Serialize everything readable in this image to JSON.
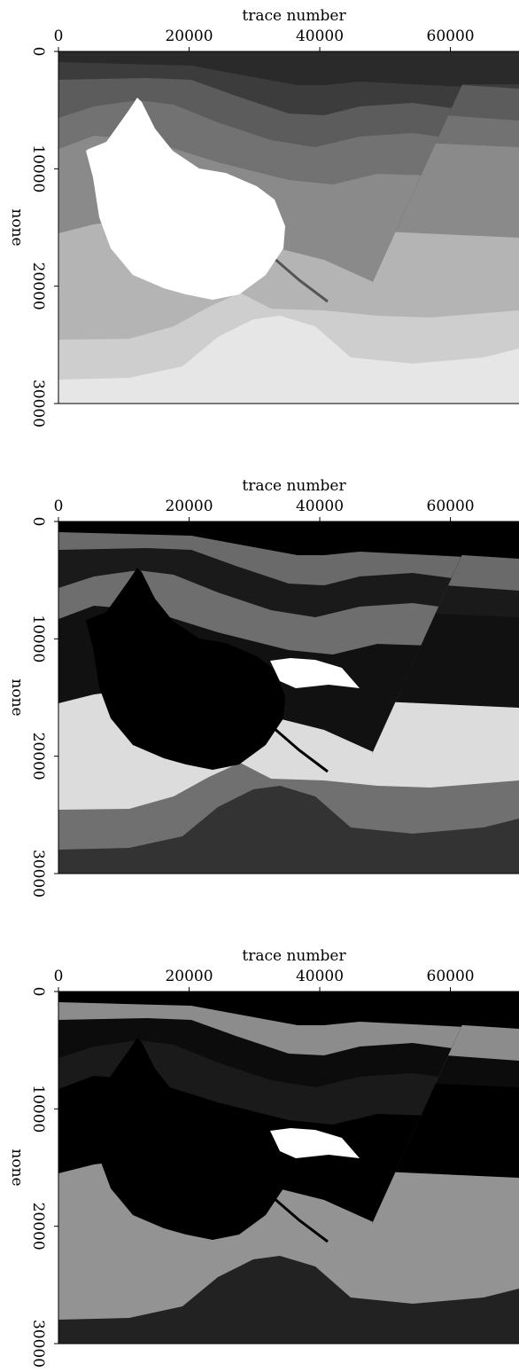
{
  "chart_data": [
    {
      "type": "image",
      "xlabel": "trace number",
      "ylabel": "none",
      "xlim": [
        0,
        70500
      ],
      "ylim": [
        0,
        30000
      ],
      "xticks": [
        0,
        20000,
        40000,
        60000
      ],
      "yticks": [
        0,
        10000,
        20000,
        30000
      ]
    },
    {
      "type": "image",
      "xlabel": "trace number",
      "ylabel": "none",
      "xlim": [
        0,
        70500
      ],
      "ylim": [
        0,
        30000
      ],
      "xticks": [
        0,
        20000,
        40000,
        60000
      ],
      "yticks": [
        0,
        10000,
        20000,
        30000
      ]
    },
    {
      "type": "image",
      "xlabel": "trace number",
      "ylabel": "none",
      "xlim": [
        0,
        70500
      ],
      "ylim": [
        0,
        30000
      ],
      "xticks": [
        0,
        20000,
        40000,
        60000
      ],
      "yticks": [
        0,
        10000,
        20000,
        30000
      ]
    }
  ]
}
